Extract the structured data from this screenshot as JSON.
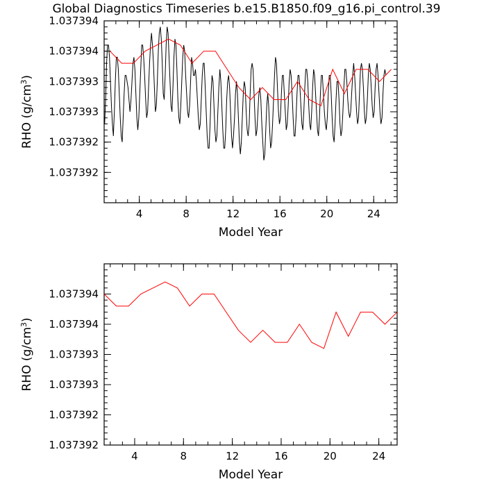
{
  "title": "Global Diagnostics Timeseries b.e15.B1850.f09_g16.pi_control.39",
  "colors": {
    "monthly": "#000000",
    "annual": "#ff0000",
    "axes": "#000000"
  },
  "chart_data": [
    {
      "type": "line",
      "xlabel": "Model Year",
      "ylabel_main": "RHO (g/cm",
      "ylabel_sup": "3",
      "ylabel_tail": ")",
      "xlim": [
        1,
        26
      ],
      "ylim": [
        1.0373915,
        1.0373945
      ],
      "x_ticks": [
        4,
        8,
        12,
        16,
        20,
        24
      ],
      "x_tick_labels": [
        "4",
        "8",
        "12",
        "16",
        "20",
        "24"
      ],
      "y_ticks": [
        1.037392,
        1.0373925,
        1.037393,
        1.0373935,
        1.037394,
        1.0373945
      ],
      "y_tick_labels": [
        "1.037392",
        "1.037392",
        "1.037393",
        "1.037393",
        "1.037394",
        "1.037394"
      ],
      "series": [
        {
          "role": "monthly",
          "x_start": 1.04,
          "x_step": 0.08333,
          "values": [
            1.0373928,
            1.0373932,
            1.0373938,
            1.0373941,
            1.0373941,
            1.0373939,
            1.0373935,
            1.0373931,
            1.0373928,
            1.0373926,
            1.037393,
            1.0373935,
            1.0373939,
            1.0373939,
            1.0373937,
            1.0373933,
            1.0373929,
            1.0373926,
            1.0373925,
            1.0373929,
            1.0373933,
            1.0373936,
            1.0373936,
            1.0373935,
            1.0373934,
            1.0373932,
            1.037393,
            1.0373932,
            1.0373935,
            1.0373938,
            1.0373939,
            1.0373937,
            1.0373933,
            1.0373929,
            1.0373927,
            1.0373929,
            1.0373933,
            1.0373937,
            1.0373941,
            1.0373941,
            1.0373939,
            1.0373936,
            1.0373932,
            1.0373929,
            1.037393,
            1.0373934,
            1.0373938,
            1.0373941,
            1.0373943,
            1.0373941,
            1.0373938,
            1.0373934,
            1.037393,
            1.0373931,
            1.0373935,
            1.037394,
            1.0373943,
            1.0373944,
            1.0373942,
            1.0373938,
            1.0373933,
            1.0373932,
            1.0373936,
            1.0373941,
            1.0373944,
            1.0373943,
            1.0373939,
            1.0373935,
            1.0373931,
            1.037393,
            1.0373934,
            1.0373939,
            1.0373942,
            1.0373941,
            1.0373937,
            1.0373932,
            1.0373929,
            1.0373928,
            1.0373931,
            1.0373935,
            1.0373939,
            1.0373941,
            1.037394,
            1.0373936,
            1.0373933,
            1.037393,
            1.0373929,
            1.0373931,
            1.0373935,
            1.0373939,
            1.0373938,
            1.0373936,
            1.0373936,
            1.0373937,
            1.0373935,
            1.0373932,
            1.0373929,
            1.0373927,
            1.0373928,
            1.0373932,
            1.0373936,
            1.0373938,
            1.0373938,
            1.0373934,
            1.037393,
            1.0373926,
            1.0373924,
            1.0373924,
            1.0373928,
            1.0373933,
            1.0373936,
            1.0373935,
            1.0373931,
            1.0373927,
            1.0373925,
            1.0373926,
            1.037393,
            1.0373934,
            1.0373937,
            1.0373935,
            1.0373931,
            1.0373927,
            1.0373924,
            1.0373924,
            1.0373927,
            1.0373932,
            1.0373935,
            1.0373936,
            1.0373934,
            1.037393,
            1.0373926,
            1.0373924,
            1.0373926,
            1.0373929,
            1.0373933,
            1.0373935,
            1.0373933,
            1.0373929,
            1.0373925,
            1.0373923,
            1.0373925,
            1.0373929,
            1.0373933,
            1.0373935,
            1.0373934,
            1.037393,
            1.0373927,
            1.0373926,
            1.0373928,
            1.0373933,
            1.0373937,
            1.0373938,
            1.0373937,
            1.0373933,
            1.0373929,
            1.0373926,
            1.0373927,
            1.037393,
            1.0373933,
            1.0373934,
            1.0373932,
            1.0373928,
            1.0373925,
            1.0373922,
            1.0373923,
            1.0373927,
            1.0373931,
            1.0373933,
            1.0373931,
            1.0373927,
            1.0373924,
            1.0373925,
            1.0373928,
            1.0373932,
            1.0373936,
            1.0373939,
            1.0373938,
            1.0373934,
            1.037393,
            1.0373928,
            1.0373929,
            1.0373933,
            1.0373936,
            1.0373936,
            1.0373933,
            1.037393,
            1.0373927,
            1.0373928,
            1.0373931,
            1.0373935,
            1.0373937,
            1.0373936,
            1.0373933,
            1.0373929,
            1.0373926,
            1.0373926,
            1.0373929,
            1.0373933,
            1.0373936,
            1.0373936,
            1.0373934,
            1.0373931,
            1.0373928,
            1.0373927,
            1.037393,
            1.0373934,
            1.0373937,
            1.0373937,
            1.0373935,
            1.0373931,
            1.0373928,
            1.0373927,
            1.037393,
            1.0373934,
            1.0373937,
            1.0373936,
            1.0373933,
            1.037393,
            1.0373927,
            1.0373926,
            1.0373929,
            1.0373933,
            1.0373936,
            1.0373936,
            1.0373933,
            1.037393,
            1.0373928,
            1.0373927,
            1.0373929,
            1.0373933,
            1.0373936,
            1.0373936,
            1.0373933,
            1.0373929,
            1.0373926,
            1.0373925,
            1.0373928,
            1.0373932,
            1.0373935,
            1.0373935,
            1.0373932,
            1.0373928,
            1.0373926,
            1.0373927,
            1.037393,
            1.0373934,
            1.0373937,
            1.0373937,
            1.0373935,
            1.0373932,
            1.037393,
            1.0373929,
            1.037393,
            1.0373933,
            1.0373936,
            1.0373938,
            1.0373936,
            1.0373933,
            1.037393,
            1.0373928,
            1.0373929,
            1.0373933,
            1.0373937,
            1.0373938,
            1.0373937,
            1.0373934,
            1.037393,
            1.0373928,
            1.0373929,
            1.0373932,
            1.0373936,
            1.0373938,
            1.0373937,
            1.0373934,
            1.0373931,
            1.0373929,
            1.037393,
            1.0373934,
            1.0373937,
            1.0373938,
            1.0373936,
            1.0373933,
            1.037393,
            1.0373928,
            1.0373929,
            1.0373933,
            1.0373936,
            1.0373937,
            1.0373936
          ]
        },
        {
          "role": "annual",
          "x": [
            1.5,
            2.5,
            3.5,
            4.5,
            5.5,
            6.5,
            7.5,
            8.5,
            9.5,
            10.5,
            11.5,
            12.5,
            13.5,
            14.5,
            15.5,
            16.5,
            17.5,
            18.5,
            19.5,
            20.5,
            21.5,
            22.5,
            23.5,
            24.5,
            25.5
          ],
          "values": [
            1.037394,
            1.0373938,
            1.0373938,
            1.037394,
            1.0373941,
            1.0373942,
            1.0373941,
            1.0373938,
            1.037394,
            1.037394,
            1.0373937,
            1.0373934,
            1.0373932,
            1.0373934,
            1.0373932,
            1.0373932,
            1.0373935,
            1.0373932,
            1.0373931,
            1.0373937,
            1.0373933,
            1.0373937,
            1.0373937,
            1.0373935,
            1.0373937
          ]
        }
      ]
    },
    {
      "type": "line",
      "xlabel": "Model Year",
      "ylabel_main": "RHO (g/cm",
      "ylabel_sup": "3",
      "ylabel_tail": ")",
      "xlim": [
        1.5,
        25.5
      ],
      "ylim": [
        1.0373915,
        1.0373945
      ],
      "x_ticks": [
        4,
        8,
        12,
        16,
        20,
        24
      ],
      "x_tick_labels": [
        "4",
        "8",
        "12",
        "16",
        "20",
        "24"
      ],
      "y_ticks": [
        1.0373915,
        1.037392,
        1.0373925,
        1.037393,
        1.0373935,
        1.037394
      ],
      "y_tick_labels": [
        "1.037392",
        "1.037392",
        "1.037393",
        "1.037393",
        "1.037394",
        "1.037394"
      ],
      "series": [
        {
          "role": "annual",
          "x": [
            1.5,
            2.5,
            3.5,
            4.5,
            5.5,
            6.5,
            7.5,
            8.5,
            9.5,
            10.5,
            11.5,
            12.5,
            13.5,
            14.5,
            15.5,
            16.5,
            17.5,
            18.5,
            19.5,
            20.5,
            21.5,
            22.5,
            23.5,
            24.5,
            25.5
          ],
          "values": [
            1.037394,
            1.0373938,
            1.0373938,
            1.037394,
            1.0373941,
            1.0373942,
            1.0373941,
            1.0373938,
            1.037394,
            1.037394,
            1.0373937,
            1.0373934,
            1.0373932,
            1.0373934,
            1.0373932,
            1.0373932,
            1.0373935,
            1.0373932,
            1.0373931,
            1.0373937,
            1.0373933,
            1.0373937,
            1.0373937,
            1.0373935,
            1.0373937
          ]
        }
      ]
    }
  ]
}
